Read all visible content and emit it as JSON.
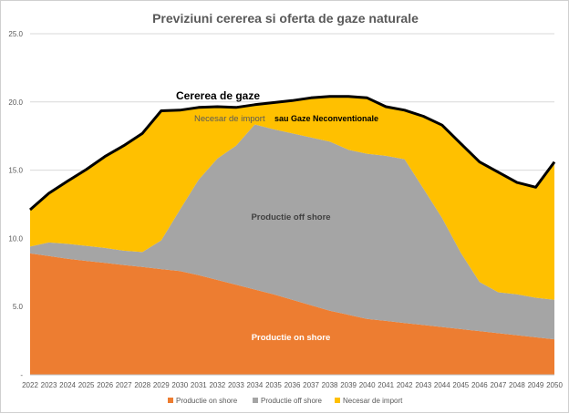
{
  "chart_data": {
    "type": "area",
    "title": "Previziuni cererea si oferta de gaze naturale",
    "xlabel": "",
    "ylabel": "",
    "ylim": [
      0,
      25
    ],
    "yticks": [
      "-",
      "5.0",
      "10.0",
      "15.0",
      "20.0",
      "25.0"
    ],
    "categories": [
      "2022",
      "2023",
      "2024",
      "2025",
      "2026",
      "2027",
      "2028",
      "2029",
      "2030",
      "2031",
      "2032",
      "2033",
      "2034",
      "2035",
      "2036",
      "2037",
      "2038",
      "2039",
      "2040",
      "2041",
      "2042",
      "2043",
      "2044",
      "2045",
      "2046",
      "2047",
      "2048",
      "2049",
      "2050"
    ],
    "series": [
      {
        "name": "Productie on shore",
        "color": "#ED7D31",
        "values": [
          8.9,
          8.7,
          8.5,
          8.35,
          8.2,
          8.05,
          7.9,
          7.75,
          7.6,
          7.3,
          6.95,
          6.6,
          6.25,
          5.9,
          5.5,
          5.1,
          4.7,
          4.4,
          4.1,
          3.95,
          3.8,
          3.65,
          3.5,
          3.35,
          3.2,
          3.05,
          2.9,
          2.75,
          2.6
        ]
      },
      {
        "name": "Productie off shore",
        "color": "#A5A5A5",
        "values": [
          0.5,
          1.0,
          1.1,
          1.1,
          1.1,
          1.05,
          1.1,
          2.1,
          4.5,
          7.0,
          8.9,
          10.2,
          12.1,
          12.1,
          12.2,
          12.3,
          12.4,
          12.1,
          12.1,
          12.1,
          12.0,
          10.0,
          8.0,
          5.6,
          3.6,
          3.0,
          3.0,
          2.9,
          2.9
        ]
      },
      {
        "name": "Necesar de import",
        "color": "#FFC000",
        "values": [
          2.7,
          3.6,
          4.6,
          5.6,
          6.7,
          7.7,
          8.7,
          9.5,
          7.3,
          5.3,
          3.8,
          2.8,
          1.45,
          1.95,
          2.4,
          2.9,
          3.3,
          3.9,
          4.1,
          3.6,
          3.6,
          5.3,
          6.8,
          8.0,
          8.8,
          8.8,
          8.2,
          8.1,
          10.1
        ]
      }
    ],
    "demand_line": {
      "name": "Cererea de gaze",
      "color": "#000000",
      "values": [
        12.1,
        13.3,
        14.2,
        15.05,
        16.0,
        16.8,
        17.7,
        19.35,
        19.4,
        19.6,
        19.65,
        19.6,
        19.8,
        19.95,
        20.1,
        20.3,
        20.4,
        20.4,
        20.3,
        19.65,
        19.4,
        18.95,
        18.3,
        16.95,
        15.6,
        14.85,
        14.1,
        13.75,
        15.6
      ]
    },
    "annotations": {
      "demand": "Cererea de gaze",
      "import": "Necesar de import",
      "unconventional": "sau Gaze Neconventionale",
      "offshore": "Productie off shore",
      "onshore": "Productie on shore"
    },
    "legend_position": "bottom",
    "grid": true
  }
}
